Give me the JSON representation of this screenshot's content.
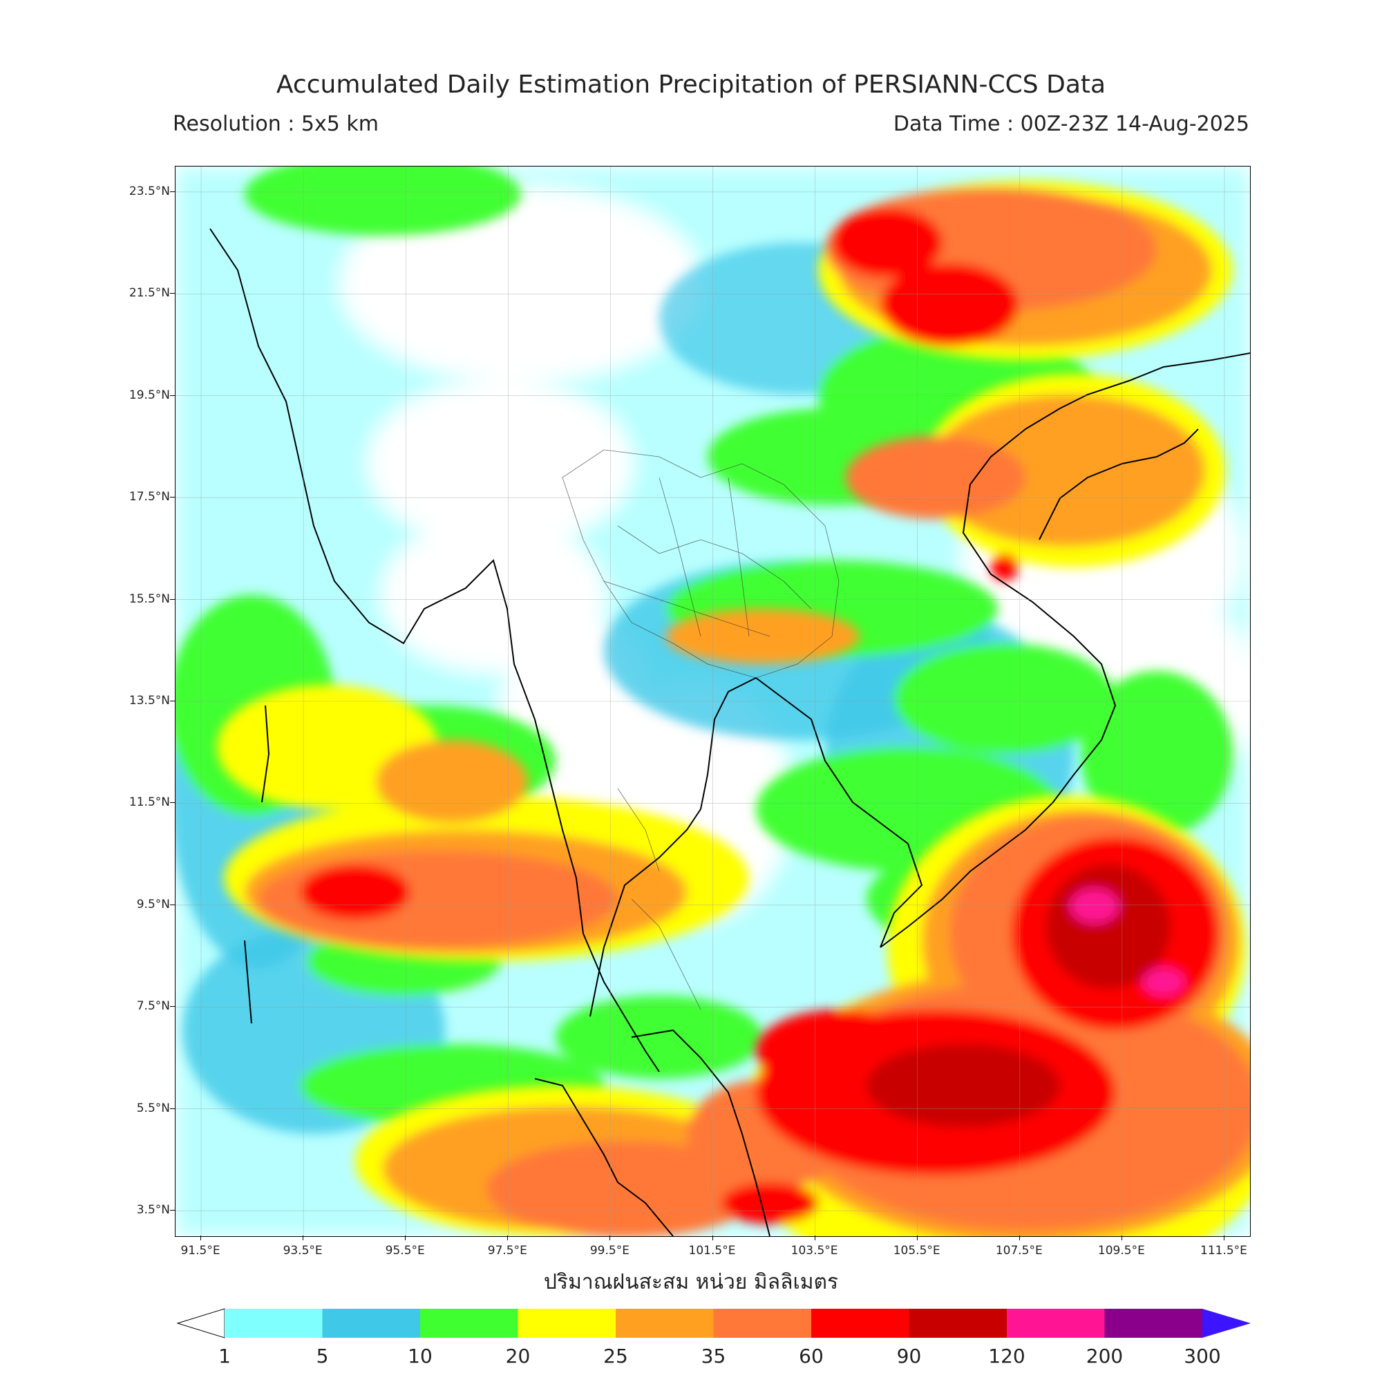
{
  "title": "Accumulated Daily Estimation Precipitation of PERSIANN-CCS Data",
  "resolution": "Resolution : 5x5 km",
  "data_time": "Data Time : 00Z-23Z 14-Aug-2025",
  "unit_label": "ปริมาณฝนสะสม หน่วย มิลลิเมตร",
  "lat_ticks": [
    "23.5°N",
    "21.5°N",
    "19.5°N",
    "17.5°N",
    "15.5°N",
    "13.5°N",
    "11.5°N",
    "9.5°N",
    "7.5°N",
    "5.5°N",
    "3.5°N"
  ],
  "lon_ticks": [
    "91.5°E",
    "93.5°E",
    "95.5°E",
    "97.5°E",
    "99.5°E",
    "101.5°E",
    "103.5°E",
    "105.5°E",
    "107.5°E",
    "109.5°E",
    "111.5°E"
  ],
  "colorbar": {
    "labels": [
      "1",
      "5",
      "10",
      "20",
      "25",
      "35",
      "60",
      "90",
      "120",
      "200",
      "300"
    ],
    "colors": [
      "#80ffff",
      "#40c8e8",
      "#40ff30",
      "#ffff00",
      "#ffa020",
      "#ff7838",
      "#ff0000",
      "#c80000",
      "#ff1493",
      "#8b008b"
    ],
    "extend_low_color": "#ffffff",
    "extend_high_color": "#3c14ff"
  },
  "map": {
    "extent_lon": [
      91.0,
      112.0
    ],
    "extent_lat": [
      3.0,
      24.0
    ],
    "precip_colors": {
      "c1": "#80ffff",
      "c5": "#40c8e8",
      "c10": "#40ff30",
      "c20": "#ffff00",
      "c25": "#ffa020",
      "c35": "#ff7838",
      "c60": "#ff0000",
      "c90": "#c80000",
      "c120": "#ff1493"
    }
  }
}
